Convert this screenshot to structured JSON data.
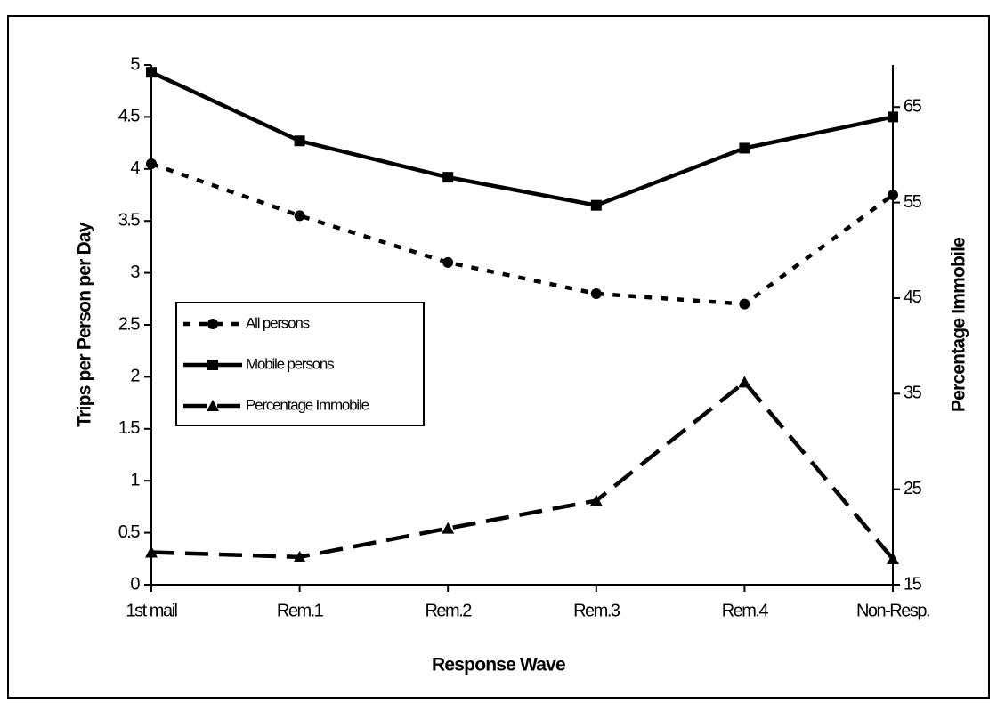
{
  "chart_data": {
    "type": "line",
    "x_label": "Response Wave",
    "y_label": "Trips per Person per Day",
    "y2_label": "Percentage Immobile",
    "categories": [
      "1st mail",
      "Rem.1",
      "Rem.2",
      "Rem.3",
      "Rem.4",
      "Non-Resp."
    ],
    "series": [
      {
        "name": "All persons",
        "color": "#000000",
        "line_style": "dotted",
        "marker": "circle",
        "values": [
          4.05,
          3.55,
          3.1,
          2.8,
          2.7,
          3.75
        ]
      },
      {
        "name": "Mobile persons",
        "color": "#000000",
        "line_style": "solid",
        "marker": "square",
        "values": [
          4.93,
          4.27,
          3.92,
          3.65,
          4.2,
          4.5
        ]
      },
      {
        "name": "Percentage Immobile",
        "color": "#000000",
        "line_style": "dashed",
        "marker": "triangle",
        "axis": "y2",
        "values": [
          18.4,
          17.9,
          20.9,
          23.8,
          36.2,
          17.7
        ]
      }
    ],
    "ylim": [
      0,
      5
    ],
    "yticks": [
      0,
      0.5,
      1,
      1.5,
      2,
      2.5,
      3,
      3.5,
      4,
      4.5,
      5
    ],
    "y2lim": [
      15,
      69.4
    ],
    "y2ticks": [
      15,
      25,
      35,
      45,
      55,
      65
    ],
    "legend": "left"
  }
}
